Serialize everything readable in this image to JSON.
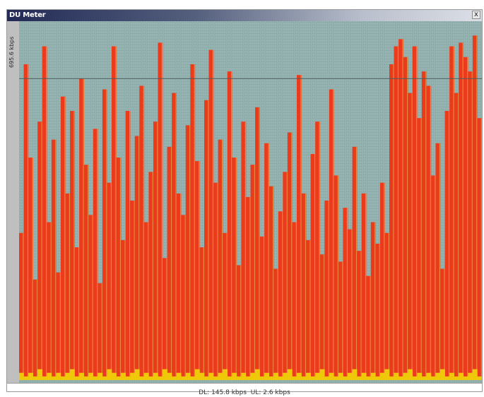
{
  "window": {
    "title": "DU Meter",
    "close_glyph": "x"
  },
  "graph": {
    "scale_label": "695.6 kbps",
    "colors": {
      "background": "#93b2b0",
      "download": "#ea3b1d",
      "download_edge": "#e98a40",
      "upload": "#f0c80a",
      "scale_line": "#4d5c5c"
    },
    "chart_data": {
      "type": "area",
      "scale_max_kbps": 695.6,
      "download_rel": [
        0.41,
        0.88,
        0.62,
        0.28,
        0.72,
        0.93,
        0.44,
        0.67,
        0.3,
        0.79,
        0.52,
        0.75,
        0.37,
        0.84,
        0.6,
        0.46,
        0.7,
        0.27,
        0.81,
        0.55,
        0.93,
        0.62,
        0.39,
        0.75,
        0.5,
        0.68,
        0.82,
        0.44,
        0.58,
        0.72,
        0.94,
        0.34,
        0.65,
        0.8,
        0.52,
        0.46,
        0.71,
        0.88,
        0.61,
        0.37,
        0.78,
        0.92,
        0.55,
        0.67,
        0.41,
        0.86,
        0.62,
        0.32,
        0.72,
        0.51,
        0.6,
        0.76,
        0.4,
        0.66,
        0.54,
        0.31,
        0.47,
        0.58,
        0.69,
        0.44,
        0.85,
        0.52,
        0.39,
        0.63,
        0.72,
        0.35,
        0.5,
        0.81,
        0.57,
        0.33,
        0.48,
        0.42,
        0.65,
        0.36,
        0.52,
        0.29,
        0.44,
        0.38,
        0.55,
        0.41,
        0.88,
        0.93,
        0.95,
        0.9,
        0.8,
        0.93,
        0.73,
        0.86,
        0.82,
        0.57,
        0.66,
        0.31,
        0.75,
        0.93,
        0.8,
        0.94,
        0.9,
        0.86,
        0.96,
        0.73
      ],
      "upload_rel": [
        0.02,
        0.01,
        0.02,
        0.01,
        0.03,
        0.01,
        0.02,
        0.01,
        0.02,
        0.01,
        0.02,
        0.03,
        0.01,
        0.02,
        0.01,
        0.02,
        0.01,
        0.02,
        0.01,
        0.03,
        0.02,
        0.01,
        0.02,
        0.01,
        0.02,
        0.03,
        0.01,
        0.02,
        0.01,
        0.02,
        0.01,
        0.03,
        0.02,
        0.01,
        0.02,
        0.01,
        0.02,
        0.01,
        0.03,
        0.02,
        0.01,
        0.02,
        0.01,
        0.02,
        0.03,
        0.01,
        0.02,
        0.01,
        0.02,
        0.01,
        0.02,
        0.03,
        0.01,
        0.02,
        0.01,
        0.02,
        0.01,
        0.02,
        0.03,
        0.01,
        0.02,
        0.01,
        0.02,
        0.01,
        0.02,
        0.03,
        0.01,
        0.02,
        0.01,
        0.02,
        0.01,
        0.02,
        0.03,
        0.01,
        0.02,
        0.01,
        0.02,
        0.01,
        0.02,
        0.03,
        0.01,
        0.02,
        0.01,
        0.02,
        0.03,
        0.01,
        0.02,
        0.01,
        0.02,
        0.01,
        0.02,
        0.03,
        0.01,
        0.02,
        0.01,
        0.02,
        0.01,
        0.02,
        0.03,
        0.01
      ],
      "scale_line_rel": 0.84,
      "grid": true
    }
  },
  "status": {
    "download": "DL: 145.8 kbps",
    "separator": "  ",
    "upload": "UL: 2.6 kbps"
  }
}
